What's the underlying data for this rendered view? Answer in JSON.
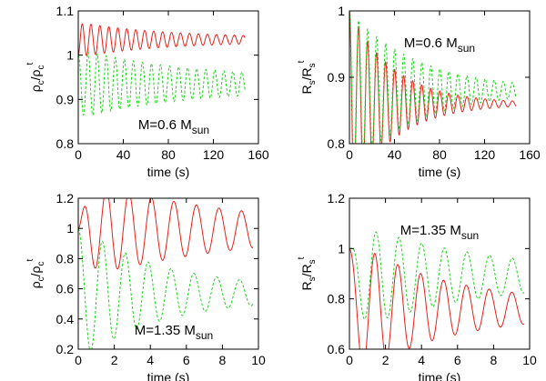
{
  "chart_data": [
    {
      "type": "line",
      "id": "tl",
      "xlabel": "time (s)",
      "ylabel_base": "ρ",
      "ylabel_sub": "c",
      "ylabel_sep": "/ρ",
      "ylabel_sup": "t",
      "xlim": [
        0,
        160
      ],
      "ylim": [
        0.8,
        1.1
      ],
      "xticks": [
        0,
        40,
        80,
        120,
        160
      ],
      "xtick_labels": [
        "0",
        "40",
        "80",
        "120",
        "160"
      ],
      "yticks": [
        0.8,
        0.9,
        1.0,
        1.1
      ],
      "ytick_labels": [
        "0.8",
        "0.9",
        "1",
        "1.1"
      ],
      "annotation": "M=0.6 M",
      "annotation_sub": "sun",
      "annotation_pos": "bottom-center",
      "series": [
        {
          "name": "red",
          "color": "#e8201a",
          "style": "solid",
          "t_end": 148,
          "start": 1.0,
          "base": 1.035,
          "amp": 0.02,
          "period": 8,
          "decay": 70
        },
        {
          "name": "green",
          "color": "#1fd21f",
          "style": "dashed",
          "t_end": 148,
          "start": 1.0,
          "base": 0.935,
          "amp": 0.045,
          "period": 8,
          "decay": 90
        }
      ]
    },
    {
      "type": "line",
      "id": "tr",
      "xlabel": "time (s)",
      "ylabel_base": "R",
      "ylabel_sub": "s",
      "ylabel_sep": "/R",
      "ylabel_sup": "t",
      "xlim": [
        0,
        160
      ],
      "ylim": [
        0.8,
        1.0
      ],
      "xticks": [
        0,
        40,
        80,
        120,
        160
      ],
      "xtick_labels": [
        "0",
        "40",
        "80",
        "120",
        "160"
      ],
      "yticks": [
        0.8,
        0.9,
        1.0
      ],
      "ytick_labels": [
        "0.8",
        "0.9",
        "1"
      ],
      "annotation": "M=0.6 M",
      "annotation_sub": "sun",
      "annotation_pos": "top-center",
      "series": [
        {
          "name": "red",
          "color": "#e8201a",
          "style": "solid",
          "t_end": 148,
          "start": 1.0,
          "base": 0.86,
          "amp": 0.01,
          "period": 8,
          "decay": 40
        },
        {
          "name": "green",
          "color": "#1fd21f",
          "style": "dashed",
          "t_end": 148,
          "start": 1.0,
          "base": 0.88,
          "amp": 0.015,
          "period": 8,
          "decay": 60
        }
      ]
    },
    {
      "type": "line",
      "id": "bl",
      "xlabel": "time (s)",
      "ylabel_base": "ρ",
      "ylabel_sub": "c",
      "ylabel_sep": "/ρ",
      "ylabel_sup": "t",
      "xlim": [
        0,
        10
      ],
      "ylim": [
        0.2,
        1.2
      ],
      "xticks": [
        0,
        2,
        4,
        6,
        8,
        10
      ],
      "xtick_labels": [
        "0",
        "2",
        "4",
        "6",
        "8",
        "10"
      ],
      "yticks": [
        0.2,
        0.4,
        0.6,
        0.8,
        1.0,
        1.2
      ],
      "ytick_labels": [
        "0.2",
        "0.4",
        "0.6",
        "0.8",
        "1",
        "1.2"
      ],
      "annotation": "M=1.35 M",
      "annotation_sub": "sun",
      "annotation_pos": "bottom-center",
      "series": [
        {
          "name": "red",
          "color": "#e8201a",
          "style": "solid",
          "t_end": 9.7,
          "start": 1.0,
          "base": 0.99,
          "amp": 0.33,
          "period": 1.25,
          "decay": 3.8
        },
        {
          "name": "green",
          "color": "#1fd21f",
          "style": "dashed",
          "t_end": 9.7,
          "start": 1.0,
          "base": 0.57,
          "amp": 0.19,
          "period": 1.25,
          "decay": 4.0
        }
      ]
    },
    {
      "type": "line",
      "id": "br",
      "xlabel": "time (s)",
      "ylabel_base": "R",
      "ylabel_sub": "s",
      "ylabel_sep": "/R",
      "ylabel_sup": "t",
      "xlim": [
        0,
        10
      ],
      "ylim": [
        0.6,
        1.2
      ],
      "xticks": [
        0,
        2,
        4,
        6,
        8,
        10
      ],
      "xtick_labels": [
        "0",
        "2",
        "4",
        "6",
        "8",
        "10"
      ],
      "yticks": [
        0.6,
        0.8,
        1.0,
        1.2
      ],
      "ytick_labels": [
        "0.6",
        "0.8",
        "1",
        "1.2"
      ],
      "annotation": "M=1.35 M",
      "annotation_sub": "sun",
      "annotation_pos": "top-center",
      "series": [
        {
          "name": "red",
          "color": "#e8201a",
          "style": "solid",
          "t_end": 9.7,
          "start": 1.0,
          "base": 0.76,
          "amp": 0.2,
          "period": 1.25,
          "decay": 3.2
        },
        {
          "name": "green",
          "color": "#1fd21f",
          "style": "dashed",
          "t_end": 9.7,
          "start": 1.0,
          "base": 0.89,
          "amp": 0.2,
          "period": 1.25,
          "decay": 3.5
        }
      ]
    }
  ]
}
